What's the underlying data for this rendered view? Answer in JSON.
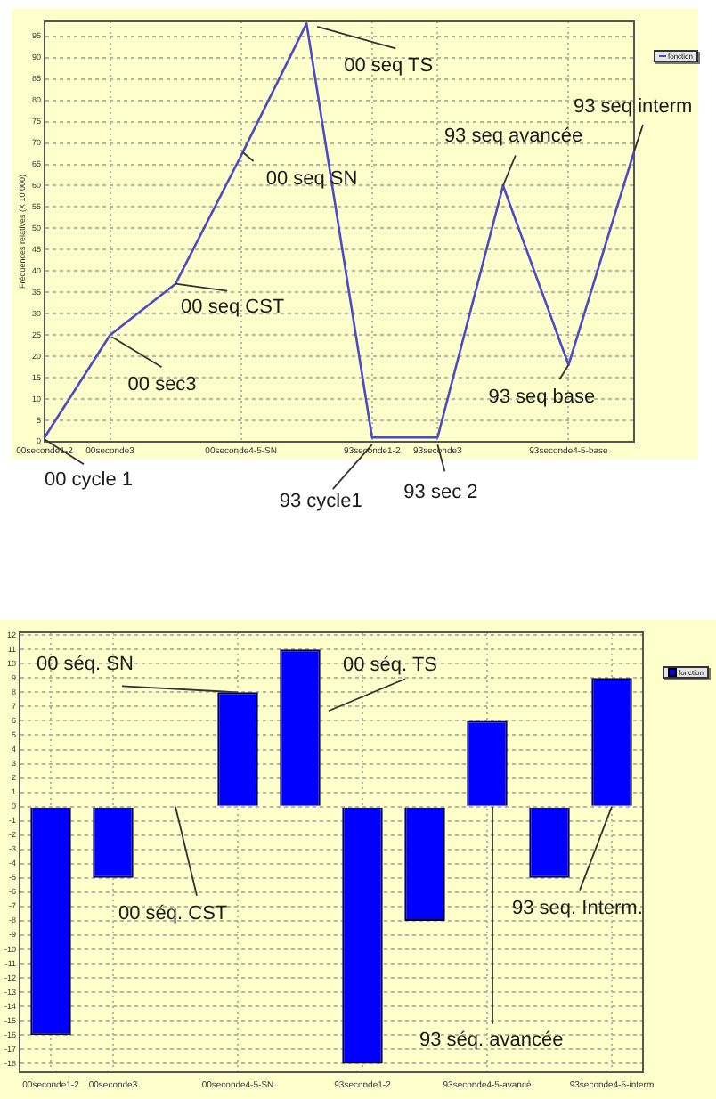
{
  "chart_data": [
    {
      "type": "line",
      "ylabel": "Fréquences relatives (X 10 000)",
      "categories": [
        "00seconde1-2",
        "00seconde3",
        null,
        "00seconde4-5-SN",
        null,
        "93seconde1-2",
        "93seconde3",
        null,
        "93seconde4-5-base",
        null
      ],
      "series": [
        {
          "name": "fonction",
          "color": "#4b4bc8",
          "values": [
            1,
            25,
            37,
            67,
            98,
            1,
            1,
            60,
            18,
            68
          ]
        }
      ],
      "ylim": [
        0,
        98.5
      ],
      "yticks": [
        0,
        5,
        10,
        15,
        20,
        25,
        30,
        35,
        40,
        45,
        50,
        55,
        60,
        65,
        70,
        75,
        80,
        85,
        90,
        95
      ],
      "grid": true,
      "legend": "top right",
      "marker": "none",
      "annotations": [
        {
          "text": "00 cycle 1",
          "x": "00seconde1-2",
          "y": 1
        },
        {
          "text": "00 sec3",
          "x": "00seconde3",
          "y": 25
        },
        "00 seq CST",
        {
          "text": "00 seq SN",
          "x": "00seconde4-5-SN",
          "y": 67
        },
        "00 seq TS",
        {
          "text": "93 cycle1",
          "x": "93seconde1-2",
          "y": 1
        },
        {
          "text": "93 sec 2",
          "x": "93seconde3",
          "y": 1
        },
        {
          "text": "93 seq avancée",
          "y": 60
        },
        {
          "text": "93 seq base",
          "x": "93seconde4-5-base",
          "y": 18
        },
        {
          "text": "93 seq interm",
          "y": 68
        }
      ]
    },
    {
      "type": "bar",
      "categories": [
        "00seconde1-2",
        "00seconde3",
        null,
        "00seconde4-5-SN",
        null,
        "93seconde1-2",
        null,
        "93seconde4-5-avancé",
        null,
        "93seconde4-5-interm"
      ],
      "series": [
        {
          "name": "fonction",
          "color": "#0000ff",
          "values": [
            -16,
            -5,
            0,
            8,
            11,
            -18,
            -8,
            6,
            -5,
            9
          ]
        }
      ],
      "ylim": [
        -18.6,
        12.2
      ],
      "yticks": [
        -18,
        -17,
        -16,
        -15,
        -14,
        -13,
        -12,
        -11,
        -10,
        -9,
        -8,
        -7,
        -6,
        -5,
        -4,
        -3,
        -2,
        -1,
        0,
        1,
        2,
        3,
        4,
        5,
        6,
        7,
        8,
        9,
        10,
        11,
        12
      ],
      "grid": true,
      "legend": "top right",
      "annotations": [
        {
          "text": "00 séq. SN",
          "x": "00seconde4-5-SN",
          "y": 8
        },
        "00 séq. TS",
        {
          "text": "00 séq. CST",
          "y": 0
        },
        {
          "text": "93 seq. Interm.",
          "x": "93seconde4-5-interm",
          "y": 0
        },
        {
          "text": "93 séq. avancée",
          "x": "93seconde4-5-avancé",
          "y": 0
        }
      ]
    }
  ]
}
